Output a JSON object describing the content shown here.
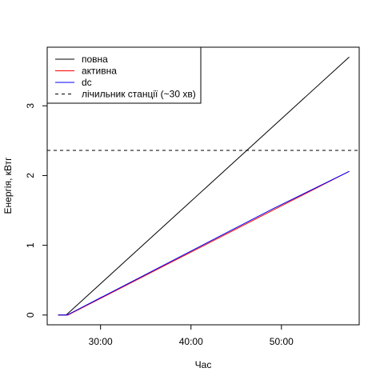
{
  "chart_data": {
    "type": "line",
    "title": "",
    "xlabel": "Час",
    "ylabel": "Енергія, кВтг",
    "xlim": [
      24.1,
      58.6
    ],
    "ylim": [
      -0.14,
      3.84
    ],
    "x_ticks": [
      {
        "value": 30,
        "label": "30:00"
      },
      {
        "value": 40,
        "label": "40:00"
      },
      {
        "value": 50,
        "label": "50:00"
      }
    ],
    "y_ticks": [
      {
        "value": 0,
        "label": "0"
      },
      {
        "value": 1,
        "label": "1"
      },
      {
        "value": 2,
        "label": "2"
      },
      {
        "value": 3,
        "label": "3"
      }
    ],
    "series": [
      {
        "name": "повна",
        "color": "#000000",
        "dash": "solid",
        "points": [
          [
            25.3,
            0.0
          ],
          [
            26.2,
            0.0
          ],
          [
            57.5,
            3.7
          ]
        ]
      },
      {
        "name": "активна",
        "color": "#ff0000",
        "dash": "solid",
        "points": [
          [
            25.3,
            0.0
          ],
          [
            26.4,
            0.0
          ],
          [
            49.0,
            1.5
          ],
          [
            57.5,
            2.06
          ]
        ]
      },
      {
        "name": "dc",
        "color": "#0000ff",
        "dash": "solid",
        "points": [
          [
            25.3,
            0.0
          ],
          [
            26.3,
            0.0
          ],
          [
            49.0,
            1.52
          ],
          [
            57.5,
            2.06
          ]
        ]
      }
    ],
    "hlines": [
      {
        "name": "лічильник станції (~30 хв)",
        "color": "#000000",
        "dash": "dashed",
        "y": 2.36
      }
    ],
    "legend": {
      "position": "top-left",
      "entries": [
        {
          "label": "повна",
          "color": "#000000",
          "dash": "solid"
        },
        {
          "label": "активна",
          "color": "#ff0000",
          "dash": "solid"
        },
        {
          "label": "dc",
          "color": "#0000ff",
          "dash": "solid"
        },
        {
          "label": "лічильник станції (~30 хв)",
          "color": "#000000",
          "dash": "dashed"
        }
      ]
    },
    "grid": false
  }
}
